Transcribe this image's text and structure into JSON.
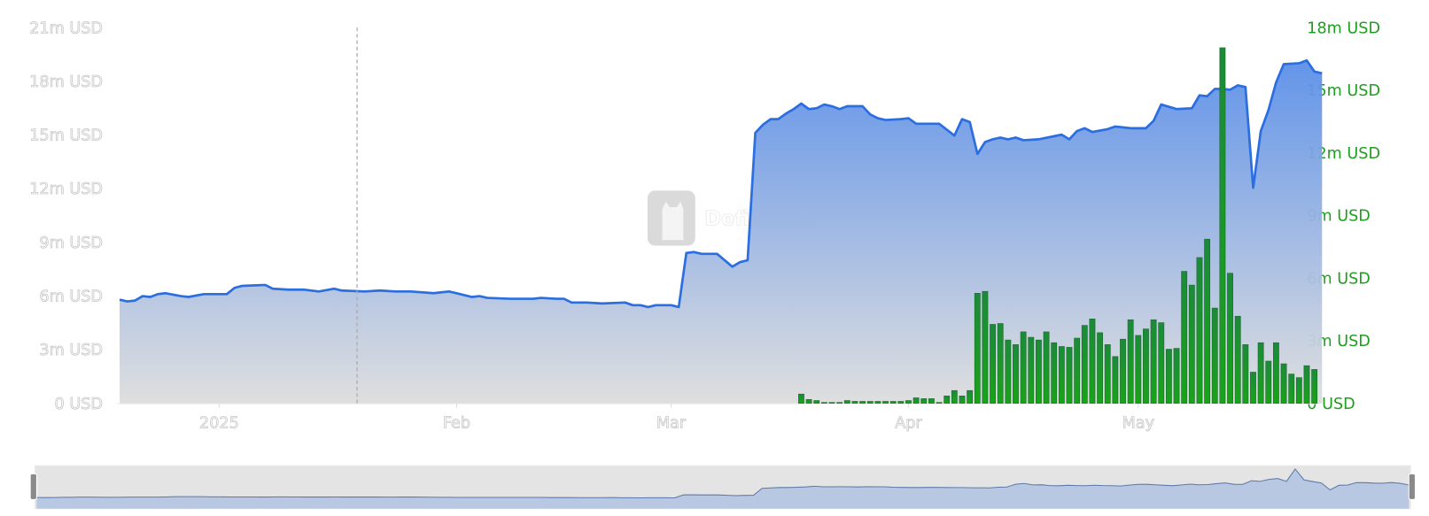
{
  "watermark": {
    "text": "DefiLlama"
  },
  "chart_data": {
    "type": "area+bar",
    "grid": false,
    "legend": "none",
    "colors": {
      "tvl_line": "#2a6ee0",
      "tvl_fill_top": "#5b8fe8",
      "tvl_fill_bottom": "#dddddd",
      "volume": "#1f9a1f",
      "right_axis_text": "#1e9e1e"
    },
    "left_axis": {
      "ticks": [
        "0 USD",
        "3m USD",
        "6m USD",
        "9m USD",
        "12m USD",
        "15m USD",
        "18m USD",
        "21m USD"
      ],
      "ylim": [
        0,
        21
      ],
      "unit": "m USD"
    },
    "right_axis": {
      "ticks": [
        "0 USD",
        "3m USD",
        "6m USD",
        "9m USD",
        "12m USD",
        "15m USD",
        "18m USD"
      ],
      "ylim": [
        0,
        18
      ],
      "unit": "m USD"
    },
    "x_axis": {
      "ticks": [
        {
          "date": "2025-01-01",
          "label": "2025"
        },
        {
          "date": "2025-02-01",
          "label": "Feb"
        },
        {
          "date": "2025-03-01",
          "label": "Mar"
        },
        {
          "date": "2025-04-01",
          "label": "Apr"
        },
        {
          "date": "2025-05-01",
          "label": "May"
        }
      ],
      "range": [
        "2024-12-19",
        "2025-05-25"
      ]
    },
    "vertical_marker": "2025-01-19",
    "series": [
      {
        "type": "area",
        "axis": "left",
        "points": [
          [
            "2024-12-19",
            5.79
          ],
          [
            "2024-12-20",
            5.69
          ],
          [
            "2024-12-21",
            5.74
          ],
          [
            "2024-12-22",
            5.99
          ],
          [
            "2024-12-23",
            5.94
          ],
          [
            "2024-12-24",
            6.1
          ],
          [
            "2024-12-25",
            6.15
          ],
          [
            "2024-12-27",
            5.99
          ],
          [
            "2024-12-28",
            5.94
          ],
          [
            "2024-12-30",
            6.1
          ],
          [
            "2025-01-02",
            6.1
          ],
          [
            "2025-01-03",
            6.45
          ],
          [
            "2025-01-04",
            6.56
          ],
          [
            "2025-01-07",
            6.61
          ],
          [
            "2025-01-08",
            6.4
          ],
          [
            "2025-01-10",
            6.35
          ],
          [
            "2025-01-12",
            6.35
          ],
          [
            "2025-01-14",
            6.25
          ],
          [
            "2025-01-16",
            6.4
          ],
          [
            "2025-01-17",
            6.3
          ],
          [
            "2025-01-20",
            6.25
          ],
          [
            "2025-01-22",
            6.3
          ],
          [
            "2025-01-24",
            6.25
          ],
          [
            "2025-01-26",
            6.25
          ],
          [
            "2025-01-29",
            6.15
          ],
          [
            "2025-01-31",
            6.25
          ],
          [
            "2025-02-01",
            6.15
          ],
          [
            "2025-02-03",
            5.94
          ],
          [
            "2025-02-04",
            5.99
          ],
          [
            "2025-02-05",
            5.89
          ],
          [
            "2025-02-08",
            5.84
          ],
          [
            "2025-02-11",
            5.84
          ],
          [
            "2025-02-12",
            5.89
          ],
          [
            "2025-02-14",
            5.84
          ],
          [
            "2025-02-15",
            5.84
          ],
          [
            "2025-02-16",
            5.63
          ],
          [
            "2025-02-18",
            5.63
          ],
          [
            "2025-02-20",
            5.58
          ],
          [
            "2025-02-23",
            5.63
          ],
          [
            "2025-02-24",
            5.48
          ],
          [
            "2025-02-25",
            5.48
          ],
          [
            "2025-02-26",
            5.38
          ],
          [
            "2025-02-27",
            5.48
          ],
          [
            "2025-03-01",
            5.48
          ],
          [
            "2025-03-02",
            5.38
          ],
          [
            "2025-03-03",
            8.4
          ],
          [
            "2025-03-04",
            8.45
          ],
          [
            "2025-03-05",
            8.35
          ],
          [
            "2025-03-07",
            8.35
          ],
          [
            "2025-03-08",
            7.99
          ],
          [
            "2025-03-09",
            7.63
          ],
          [
            "2025-03-10",
            7.89
          ],
          [
            "2025-03-11",
            7.99
          ],
          [
            "2025-03-12",
            15.11
          ],
          [
            "2025-03-13",
            15.57
          ],
          [
            "2025-03-14",
            15.88
          ],
          [
            "2025-03-15",
            15.88
          ],
          [
            "2025-03-16",
            16.19
          ],
          [
            "2025-03-17",
            16.44
          ],
          [
            "2025-03-18",
            16.75
          ],
          [
            "2025-03-19",
            16.44
          ],
          [
            "2025-03-20",
            16.49
          ],
          [
            "2025-03-21",
            16.7
          ],
          [
            "2025-03-22",
            16.6
          ],
          [
            "2025-03-23",
            16.44
          ],
          [
            "2025-03-24",
            16.6
          ],
          [
            "2025-03-25",
            16.6
          ],
          [
            "2025-03-26",
            16.6
          ],
          [
            "2025-03-27",
            16.14
          ],
          [
            "2025-03-28",
            15.93
          ],
          [
            "2025-03-29",
            15.83
          ],
          [
            "2025-03-31",
            15.88
          ],
          [
            "2025-04-01",
            15.93
          ],
          [
            "2025-04-02",
            15.62
          ],
          [
            "2025-04-04",
            15.62
          ],
          [
            "2025-04-05",
            15.62
          ],
          [
            "2025-04-07",
            14.96
          ],
          [
            "2025-04-08",
            15.88
          ],
          [
            "2025-04-09",
            15.72
          ],
          [
            "2025-04-10",
            13.93
          ],
          [
            "2025-04-11",
            14.6
          ],
          [
            "2025-04-12",
            14.75
          ],
          [
            "2025-04-13",
            14.85
          ],
          [
            "2025-04-14",
            14.75
          ],
          [
            "2025-04-15",
            14.85
          ],
          [
            "2025-04-16",
            14.7
          ],
          [
            "2025-04-18",
            14.75
          ],
          [
            "2025-04-21",
            15.01
          ],
          [
            "2025-04-22",
            14.75
          ],
          [
            "2025-04-23",
            15.21
          ],
          [
            "2025-04-24",
            15.37
          ],
          [
            "2025-04-25",
            15.16
          ],
          [
            "2025-04-27",
            15.32
          ],
          [
            "2025-04-28",
            15.47
          ],
          [
            "2025-04-30",
            15.37
          ],
          [
            "2025-05-02",
            15.37
          ],
          [
            "2025-05-03",
            15.78
          ],
          [
            "2025-05-04",
            16.7
          ],
          [
            "2025-05-06",
            16.44
          ],
          [
            "2025-05-08",
            16.49
          ],
          [
            "2025-05-09",
            17.21
          ],
          [
            "2025-05-10",
            17.16
          ],
          [
            "2025-05-11",
            17.57
          ],
          [
            "2025-05-12",
            17.57
          ],
          [
            "2025-05-13",
            17.52
          ],
          [
            "2025-05-14",
            17.77
          ],
          [
            "2025-05-15",
            17.67
          ],
          [
            "2025-05-16",
            12.04
          ],
          [
            "2025-05-17",
            15.21
          ],
          [
            "2025-05-18",
            16.39
          ],
          [
            "2025-05-19",
            17.93
          ],
          [
            "2025-05-20",
            18.95
          ],
          [
            "2025-05-22",
            19.0
          ],
          [
            "2025-05-23",
            19.16
          ],
          [
            "2025-05-24",
            18.54
          ],
          [
            "2025-05-25",
            18.44
          ]
        ]
      },
      {
        "type": "bar",
        "axis": "right",
        "points": [
          [
            "2025-03-18",
            0.44
          ],
          [
            "2025-03-19",
            0.18
          ],
          [
            "2025-03-20",
            0.13
          ],
          [
            "2025-03-21",
            0.04
          ],
          [
            "2025-03-22",
            0.04
          ],
          [
            "2025-03-23",
            0.04
          ],
          [
            "2025-03-24",
            0.13
          ],
          [
            "2025-03-25",
            0.09
          ],
          [
            "2025-03-26",
            0.09
          ],
          [
            "2025-03-27",
            0.09
          ],
          [
            "2025-03-28",
            0.09
          ],
          [
            "2025-03-29",
            0.09
          ],
          [
            "2025-03-30",
            0.09
          ],
          [
            "2025-03-31",
            0.09
          ],
          [
            "2025-04-01",
            0.13
          ],
          [
            "2025-04-02",
            0.26
          ],
          [
            "2025-04-03",
            0.22
          ],
          [
            "2025-04-04",
            0.22
          ],
          [
            "2025-04-05",
            0.04
          ],
          [
            "2025-04-06",
            0.35
          ],
          [
            "2025-04-07",
            0.61
          ],
          [
            "2025-04-08",
            0.35
          ],
          [
            "2025-04-09",
            0.61
          ],
          [
            "2025-04-10",
            5.27
          ],
          [
            "2025-04-11",
            5.36
          ],
          [
            "2025-04-12",
            3.78
          ],
          [
            "2025-04-13",
            3.82
          ],
          [
            "2025-04-14",
            3.03
          ],
          [
            "2025-04-15",
            2.81
          ],
          [
            "2025-04-16",
            3.42
          ],
          [
            "2025-04-17",
            3.16
          ],
          [
            "2025-04-18",
            3.03
          ],
          [
            "2025-04-19",
            3.42
          ],
          [
            "2025-04-20",
            2.9
          ],
          [
            "2025-04-21",
            2.72
          ],
          [
            "2025-04-22",
            2.68
          ],
          [
            "2025-04-23",
            3.12
          ],
          [
            "2025-04-24",
            3.73
          ],
          [
            "2025-04-25",
            4.04
          ],
          [
            "2025-04-26",
            3.38
          ],
          [
            "2025-04-27",
            2.81
          ],
          [
            "2025-04-28",
            2.24
          ],
          [
            "2025-04-29",
            3.07
          ],
          [
            "2025-04-30",
            4.0
          ],
          [
            "2025-05-01",
            3.25
          ],
          [
            "2025-05-02",
            3.56
          ],
          [
            "2025-05-03",
            4.0
          ],
          [
            "2025-05-04",
            3.86
          ],
          [
            "2025-05-05",
            2.59
          ],
          [
            "2025-05-06",
            2.63
          ],
          [
            "2025-05-07",
            6.32
          ],
          [
            "2025-05-08",
            5.66
          ],
          [
            "2025-05-09",
            6.98
          ],
          [
            "2025-05-10",
            7.86
          ],
          [
            "2025-05-11",
            4.56
          ],
          [
            "2025-05-12",
            17.03
          ],
          [
            "2025-05-13",
            6.23
          ],
          [
            "2025-05-14",
            4.17
          ],
          [
            "2025-05-15",
            2.81
          ],
          [
            "2025-05-16",
            1.49
          ],
          [
            "2025-05-17",
            2.9
          ],
          [
            "2025-05-18",
            2.02
          ],
          [
            "2025-05-19",
            2.9
          ],
          [
            "2025-05-20",
            1.89
          ],
          [
            "2025-05-21",
            1.4
          ],
          [
            "2025-05-22",
            1.23
          ],
          [
            "2025-05-23",
            1.8
          ],
          [
            "2025-05-24",
            1.62
          ]
        ]
      }
    ],
    "zoom_slider": {
      "start_percent": 0,
      "end_percent": 100
    }
  }
}
